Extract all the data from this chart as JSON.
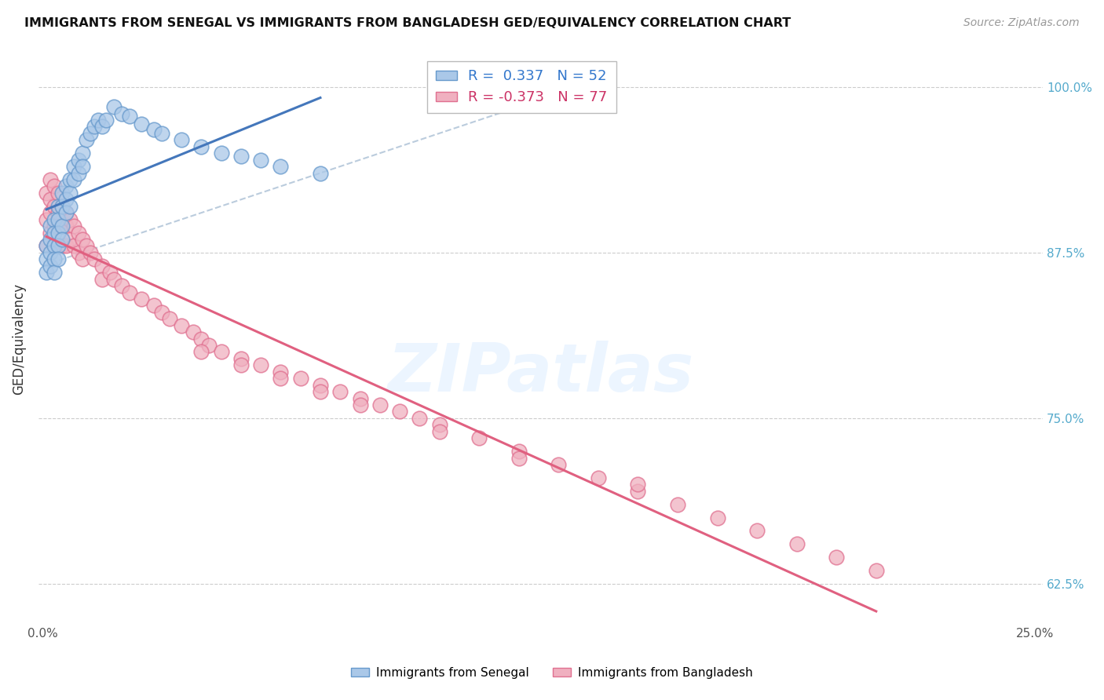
{
  "title": "IMMIGRANTS FROM SENEGAL VS IMMIGRANTS FROM BANGLADESH GED/EQUIVALENCY CORRELATION CHART",
  "source": "Source: ZipAtlas.com",
  "ylabel": "GED/Equivalency",
  "legend_label1": "Immigrants from Senegal",
  "legend_label2": "Immigrants from Bangladesh",
  "r1": 0.337,
  "n1": 52,
  "r2": -0.373,
  "n2": 77,
  "xlim": [
    -0.001,
    0.252
  ],
  "ylim": [
    0.595,
    1.025
  ],
  "xtick_pos": [
    0.0,
    0.05,
    0.1,
    0.15,
    0.2,
    0.25
  ],
  "xtick_labels": [
    "0.0%",
    "",
    "",
    "",
    "",
    "25.0%"
  ],
  "ytick_pos": [
    0.625,
    0.75,
    0.875,
    1.0
  ],
  "ytick_labels": [
    "62.5%",
    "75.0%",
    "87.5%",
    "100.0%"
  ],
  "color_blue_fill": "#aac8e8",
  "color_blue_edge": "#6699cc",
  "color_pink_fill": "#f0b0c0",
  "color_pink_edge": "#e07090",
  "color_blue_line": "#4477bb",
  "color_pink_line": "#e06080",
  "color_dash": "#bbccdd",
  "color_grid": "#cccccc",
  "color_ytick_right": "#55aacc",
  "bg": "#ffffff",
  "watermark_color": "#ddeeff",
  "senegal_x": [
    0.001,
    0.001,
    0.001,
    0.002,
    0.002,
    0.002,
    0.002,
    0.003,
    0.003,
    0.003,
    0.003,
    0.003,
    0.004,
    0.004,
    0.004,
    0.004,
    0.004,
    0.005,
    0.005,
    0.005,
    0.005,
    0.006,
    0.006,
    0.006,
    0.007,
    0.007,
    0.007,
    0.008,
    0.008,
    0.009,
    0.009,
    0.01,
    0.01,
    0.011,
    0.012,
    0.013,
    0.014,
    0.015,
    0.016,
    0.018,
    0.02,
    0.022,
    0.025,
    0.028,
    0.03,
    0.035,
    0.04,
    0.045,
    0.05,
    0.055,
    0.06,
    0.07
  ],
  "senegal_y": [
    0.88,
    0.87,
    0.86,
    0.895,
    0.885,
    0.875,
    0.865,
    0.9,
    0.89,
    0.88,
    0.87,
    0.86,
    0.91,
    0.9,
    0.89,
    0.88,
    0.87,
    0.92,
    0.91,
    0.895,
    0.885,
    0.925,
    0.915,
    0.905,
    0.93,
    0.92,
    0.91,
    0.94,
    0.93,
    0.945,
    0.935,
    0.95,
    0.94,
    0.96,
    0.965,
    0.97,
    0.975,
    0.97,
    0.975,
    0.985,
    0.98,
    0.978,
    0.972,
    0.968,
    0.965,
    0.96,
    0.955,
    0.95,
    0.948,
    0.945,
    0.94,
    0.935
  ],
  "bangladesh_x": [
    0.001,
    0.001,
    0.001,
    0.002,
    0.002,
    0.002,
    0.002,
    0.003,
    0.003,
    0.003,
    0.003,
    0.004,
    0.004,
    0.004,
    0.004,
    0.005,
    0.005,
    0.005,
    0.006,
    0.006,
    0.006,
    0.007,
    0.007,
    0.008,
    0.008,
    0.009,
    0.009,
    0.01,
    0.01,
    0.011,
    0.012,
    0.013,
    0.015,
    0.015,
    0.017,
    0.018,
    0.02,
    0.022,
    0.025,
    0.028,
    0.03,
    0.032,
    0.035,
    0.038,
    0.04,
    0.042,
    0.045,
    0.05,
    0.055,
    0.06,
    0.065,
    0.07,
    0.075,
    0.08,
    0.085,
    0.09,
    0.095,
    0.1,
    0.11,
    0.12,
    0.13,
    0.14,
    0.15,
    0.16,
    0.17,
    0.18,
    0.19,
    0.2,
    0.21,
    0.04,
    0.05,
    0.06,
    0.07,
    0.08,
    0.1,
    0.12,
    0.15
  ],
  "bangladesh_y": [
    0.92,
    0.9,
    0.88,
    0.93,
    0.915,
    0.905,
    0.89,
    0.925,
    0.91,
    0.895,
    0.88,
    0.92,
    0.905,
    0.895,
    0.88,
    0.91,
    0.895,
    0.88,
    0.905,
    0.895,
    0.88,
    0.9,
    0.885,
    0.895,
    0.88,
    0.89,
    0.875,
    0.885,
    0.87,
    0.88,
    0.875,
    0.87,
    0.865,
    0.855,
    0.86,
    0.855,
    0.85,
    0.845,
    0.84,
    0.835,
    0.83,
    0.825,
    0.82,
    0.815,
    0.81,
    0.805,
    0.8,
    0.795,
    0.79,
    0.785,
    0.78,
    0.775,
    0.77,
    0.765,
    0.76,
    0.755,
    0.75,
    0.745,
    0.735,
    0.725,
    0.715,
    0.705,
    0.695,
    0.685,
    0.675,
    0.665,
    0.655,
    0.645,
    0.635,
    0.8,
    0.79,
    0.78,
    0.77,
    0.76,
    0.74,
    0.72,
    0.7
  ]
}
